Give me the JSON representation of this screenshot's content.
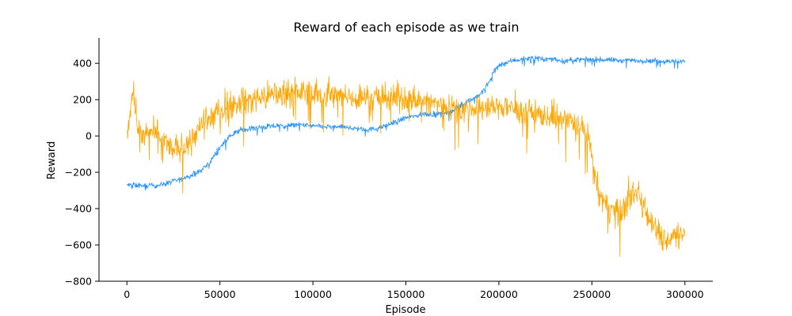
{
  "chart_data": {
    "type": "line",
    "title": "Reward of each episode as we train",
    "xlabel": "Episode",
    "ylabel": "Reward",
    "xlim": [
      -15000,
      315000
    ],
    "ylim": [
      -800,
      540
    ],
    "xticks": [
      0,
      50000,
      100000,
      150000,
      200000,
      250000,
      300000
    ],
    "yticks": [
      -800,
      -600,
      -400,
      -200,
      0,
      200,
      400
    ],
    "grid": false,
    "legend": "none",
    "series": [
      {
        "color": "#1e90ff",
        "noise": 12,
        "x": [
          0,
          5000,
          10000,
          15000,
          20000,
          25000,
          30000,
          35000,
          40000,
          45000,
          48000,
          52000,
          55000,
          60000,
          65000,
          70000,
          75000,
          80000,
          85000,
          90000,
          95000,
          100000,
          105000,
          110000,
          115000,
          120000,
          125000,
          130000,
          135000,
          140000,
          145000,
          150000,
          155000,
          160000,
          165000,
          170000,
          175000,
          180000,
          185000,
          190000,
          193000,
          195000,
          197000,
          200000,
          205000,
          210000,
          215000,
          220000,
          225000,
          230000,
          235000,
          240000,
          245000,
          250000,
          255000,
          260000,
          265000,
          270000,
          275000,
          280000,
          285000,
          290000,
          295000,
          300000
        ],
        "y": [
          -270,
          -272,
          -275,
          -273,
          -265,
          -250,
          -235,
          -215,
          -190,
          -140,
          -90,
          -40,
          -5,
          30,
          40,
          45,
          50,
          55,
          55,
          60,
          60,
          55,
          50,
          50,
          50,
          45,
          40,
          35,
          40,
          60,
          80,
          100,
          110,
          120,
          120,
          125,
          140,
          170,
          200,
          230,
          270,
          300,
          350,
          390,
          410,
          420,
          425,
          430,
          420,
          425,
          410,
          420,
          420,
          420,
          420,
          420,
          415,
          415,
          415,
          415,
          415,
          410,
          410,
          410
        ]
      },
      {
        "color": "#ffa500",
        "noise": 60,
        "x": [
          0,
          2000,
          3500,
          5000,
          7000,
          10000,
          15000,
          20000,
          25000,
          30000,
          35000,
          40000,
          45000,
          50000,
          55000,
          60000,
          65000,
          70000,
          75000,
          80000,
          85000,
          90000,
          95000,
          100000,
          105000,
          110000,
          115000,
          120000,
          125000,
          130000,
          135000,
          140000,
          145000,
          150000,
          155000,
          160000,
          165000,
          170000,
          175000,
          180000,
          185000,
          190000,
          195000,
          200000,
          205000,
          210000,
          215000,
          220000,
          225000,
          230000,
          235000,
          240000,
          245000,
          248000,
          250000,
          252000,
          255000,
          260000,
          265000,
          270000,
          275000,
          280000,
          285000,
          290000,
          295000,
          300000
        ],
        "y": [
          0,
          150,
          260,
          100,
          0,
          0,
          20,
          -30,
          -80,
          -60,
          -10,
          50,
          100,
          140,
          160,
          180,
          200,
          210,
          220,
          230,
          240,
          245,
          240,
          235,
          230,
          220,
          215,
          215,
          210,
          210,
          210,
          210,
          205,
          200,
          195,
          190,
          180,
          170,
          160,
          150,
          145,
          150,
          155,
          160,
          160,
          150,
          140,
          120,
          110,
          100,
          90,
          70,
          40,
          0,
          -120,
          -250,
          -350,
          -400,
          -430,
          -350,
          -300,
          -420,
          -520,
          -580,
          -540,
          -520
        ]
      }
    ]
  }
}
